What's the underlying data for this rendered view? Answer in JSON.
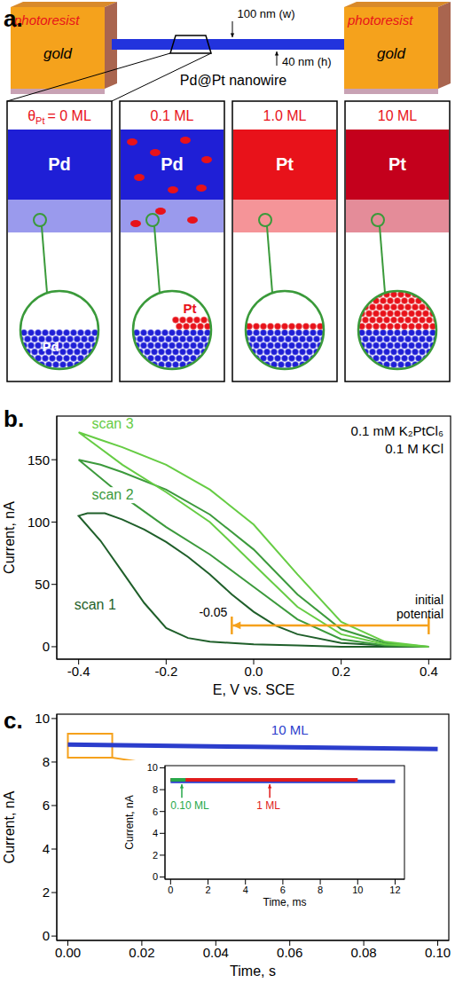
{
  "panel_a": {
    "panel_label": "a.",
    "electrodes": [
      {
        "label": "photoresist",
        "material": "gold",
        "color": "#f5a21c"
      },
      {
        "label": "photoresist",
        "material": "gold",
        "color": "#f5a21c"
      }
    ],
    "width_label": "100 nm (w)",
    "height_label": "40 nm (h)",
    "wire_label": "Pd@Pt nanowire",
    "wire_color": "#2233dd",
    "panels": [
      {
        "coverage_symbol": "θ",
        "coverage_subscript": "Pt",
        "coverage": "= 0 ML",
        "band_label": "Pd",
        "circle_label": "Pd",
        "color": "#1f1fd6"
      },
      {
        "coverage": "0.1 ML",
        "band_label": "Pd",
        "circle_label": "Pt",
        "color": "#1f1fd6"
      },
      {
        "coverage": "1.0 ML",
        "band_label": "Pt",
        "color": "#e8121a"
      },
      {
        "coverage": "10 ML",
        "band_label": "Pt",
        "color": "#c4001c"
      }
    ]
  },
  "chart_data": [
    {
      "type": "line",
      "panel_label": "b.",
      "xlabel": "E, V vs. SCE",
      "ylabel": "Current, nA",
      "xlim": [
        -0.45,
        0.45
      ],
      "xticks": [
        -0.4,
        -0.2,
        {
          "value": 0,
          "label": "0.0"
        },
        0.2,
        0.4
      ],
      "ylim": [
        -10,
        185
      ],
      "yticks": [
        0,
        50,
        100,
        150
      ],
      "annotations": [
        "0.1 mM K₂PtCl₆",
        "0.1 M KCl"
      ],
      "sweep": {
        "from": 0.4,
        "to": -0.05,
        "text": "initial potential",
        "color": "#f5a11c"
      },
      "series": [
        {
          "name": "scan 1",
          "color": "#1f5f2a",
          "x": [
            0.4,
            0.3,
            0.2,
            0.1,
            0.0,
            -0.05,
            -0.1,
            -0.15,
            -0.2,
            -0.25,
            -0.3,
            -0.35,
            -0.4,
            -0.38,
            -0.34,
            -0.3,
            -0.25,
            -0.2,
            -0.15,
            -0.1,
            -0.05,
            0.0,
            0.05,
            0.1,
            0.2,
            0.3
          ],
          "values": [
            0,
            0,
            0,
            1,
            2,
            3,
            4,
            7,
            15,
            35,
            60,
            85,
            105,
            107,
            107,
            102,
            94,
            84,
            72,
            58,
            42,
            28,
            17,
            10,
            3,
            1
          ]
        },
        {
          "name": "scan 2",
          "color": "#3c9a3c",
          "x": [
            0.4,
            0.3,
            0.2,
            0.1,
            0.0,
            -0.1,
            -0.2,
            -0.3,
            -0.4,
            -0.35,
            -0.3,
            -0.2,
            -0.1,
            0.0,
            0.1,
            0.2,
            0.3,
            0.4
          ],
          "values": [
            0,
            1,
            6,
            22,
            48,
            74,
            96,
            121,
            150,
            146,
            140,
            126,
            106,
            78,
            42,
            14,
            3,
            0
          ]
        },
        {
          "name": "scan 3",
          "color": "#66cc44",
          "x": [
            0.4,
            0.3,
            0.2,
            0.1,
            0.0,
            -0.1,
            -0.2,
            -0.3,
            -0.4,
            -0.35,
            -0.3,
            -0.2,
            -0.1,
            0.0,
            0.1,
            0.2,
            0.3,
            0.4
          ],
          "values": [
            0,
            2,
            10,
            32,
            66,
            100,
            124,
            146,
            172,
            166,
            160,
            146,
            126,
            98,
            58,
            20,
            4,
            0
          ]
        }
      ]
    },
    {
      "type": "line",
      "panel_label": "c.",
      "xlabel": "Time, s",
      "ylabel": "Current, nA",
      "xlim": [
        -0.003,
        0.103
      ],
      "xticks": [
        {
          "value": 0,
          "label": "0.00"
        },
        0.02,
        0.04,
        0.06,
        0.08,
        {
          "value": 0.1,
          "label": "0.10"
        }
      ],
      "ylim": [
        -0.2,
        10.2
      ],
      "yticks": [
        0,
        2,
        4,
        6,
        8,
        10
      ],
      "zoom_box": {
        "x": [
          0,
          0.012
        ],
        "y": [
          8.2,
          9.3
        ],
        "color": "#f5a11c"
      },
      "series": [
        {
          "name": "10 ML",
          "color": "#2b3dcc",
          "x": [
            0,
            0.05,
            0.1
          ],
          "values": [
            8.8,
            8.7,
            8.6
          ]
        }
      ]
    },
    {
      "type": "line",
      "xlabel": "Time, ms",
      "ylabel": "Current, nA",
      "xlim": [
        -0.3,
        12.5
      ],
      "xticks": [
        0,
        2,
        4,
        6,
        8,
        10,
        12
      ],
      "ylim": [
        -0.2,
        10.2
      ],
      "yticks": [
        0,
        2,
        4,
        6,
        8,
        10
      ],
      "series": [
        {
          "color": "#2b3dcc",
          "x": [
            0,
            12
          ],
          "values": [
            8.75,
            8.75
          ]
        },
        {
          "name": "1 ML",
          "color": "#e01b1b",
          "x": [
            0,
            10
          ],
          "values": [
            8.9,
            8.9
          ]
        },
        {
          "name": "0.10 ML",
          "color": "#27a84a",
          "x": [
            0,
            0.8
          ],
          "values": [
            8.9,
            8.9
          ]
        }
      ]
    }
  ]
}
